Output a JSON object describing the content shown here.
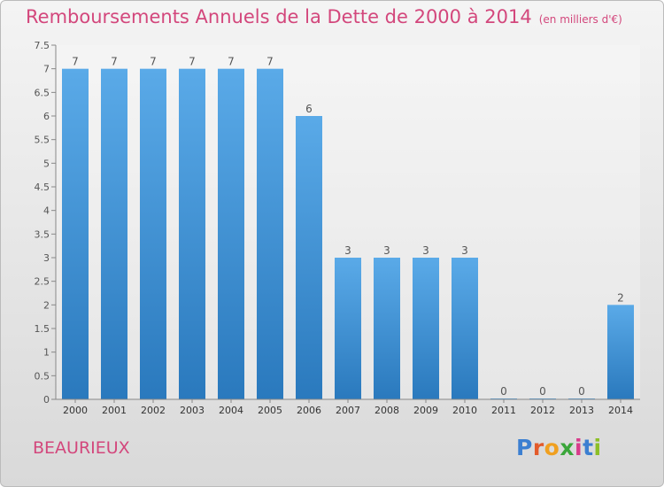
{
  "title": "Remboursements Annuels de la Dette de 2000 à 2014",
  "unit": "(en milliers d'€)",
  "place": "BEAURIEUX",
  "logo": {
    "text": "Proxiti",
    "letter_colors": [
      "#3c7fd1",
      "#e35b2b",
      "#f0a020",
      "#3aa63a",
      "#d83b8b",
      "#3c7fd1",
      "#8cbf26"
    ]
  },
  "colors": {
    "bar_light": "#5aaae8",
    "bar_dark": "#2a79bd",
    "accent": "#d3477c"
  },
  "chart_data": {
    "type": "bar",
    "title": "Remboursements Annuels de la Dette de 2000 à 2014",
    "ylabel": "",
    "xlabel": "",
    "categories": [
      "2000",
      "2001",
      "2002",
      "2003",
      "2004",
      "2005",
      "2006",
      "2007",
      "2008",
      "2009",
      "2010",
      "2011",
      "2012",
      "2013",
      "2014"
    ],
    "values": [
      7,
      7,
      7,
      7,
      7,
      7,
      6,
      3,
      3,
      3,
      3,
      0,
      0,
      0,
      2
    ],
    "ylim": [
      0,
      7.5
    ],
    "yticks": [
      "0",
      "0.5",
      "1",
      "1.5",
      "2",
      "2.5",
      "3",
      "3.5",
      "4",
      "4.5",
      "5",
      "5.5",
      "6",
      "6.5",
      "7",
      "7.5"
    ],
    "grid": false,
    "legend": "none"
  }
}
